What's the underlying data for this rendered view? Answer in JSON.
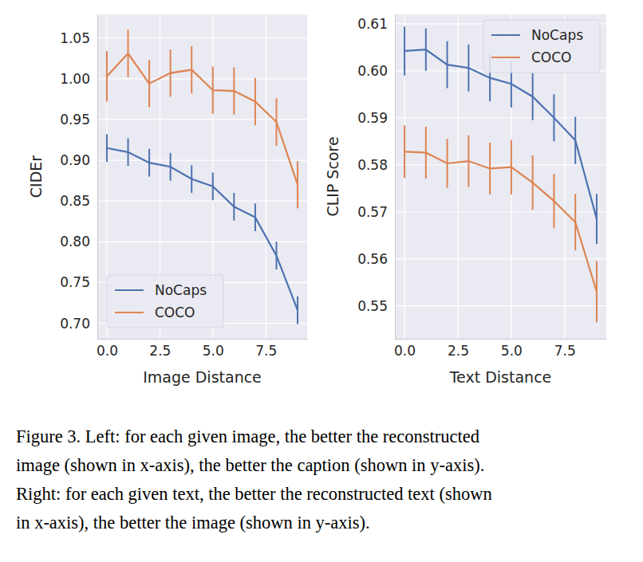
{
  "chart_data": [
    {
      "type": "line",
      "xlabel": "Image Distance",
      "ylabel": "CIDEr",
      "x": [
        0,
        1,
        2,
        3,
        4,
        5,
        6,
        7,
        8,
        9
      ],
      "xlim": [
        -0.45,
        9.45
      ],
      "xticks": [
        {
          "value": 0,
          "label": "0.0"
        },
        2.5,
        {
          "value": 5,
          "label": "5.0"
        },
        7.5
      ],
      "ylim": [
        0.681,
        1.079
      ],
      "yticks": [
        {
          "value": 0.7,
          "label": "0.70"
        },
        0.75,
        {
          "value": 0.8,
          "label": "0.80"
        },
        0.85,
        {
          "value": 0.9,
          "label": "0.90"
        },
        0.95,
        {
          "value": 1.0,
          "label": "1.00"
        },
        1.05
      ],
      "grid": true,
      "legend": "lower left",
      "series": [
        {
          "name": "NoCaps",
          "color": "#4c72b0",
          "values": [
            0.915,
            0.91,
            0.897,
            0.892,
            0.877,
            0.868,
            0.843,
            0.83,
            0.783,
            0.716
          ],
          "errors": [
            0.017,
            0.017,
            0.017,
            0.017,
            0.017,
            0.017,
            0.017,
            0.017,
            0.017,
            0.017
          ]
        },
        {
          "name": "COCO",
          "color": "#dd8452",
          "values": [
            1.003,
            1.031,
            0.994,
            1.007,
            1.011,
            0.986,
            0.985,
            0.972,
            0.947,
            0.87
          ],
          "errors": [
            0.031,
            0.029,
            0.029,
            0.029,
            0.029,
            0.029,
            0.029,
            0.029,
            0.029,
            0.029
          ]
        }
      ]
    },
    {
      "type": "line",
      "xlabel": "Text Distance",
      "ylabel": "CLIP Score",
      "x": [
        0,
        1,
        2,
        3,
        4,
        5,
        6,
        7,
        8,
        9
      ],
      "xlim": [
        -0.45,
        9.45
      ],
      "xticks": [
        {
          "value": 0,
          "label": "0.0"
        },
        2.5,
        {
          "value": 5,
          "label": "5.0"
        },
        7.5
      ],
      "ylim": [
        0.543,
        0.612
      ],
      "yticks": [
        0.55,
        0.56,
        0.57,
        0.58,
        0.59,
        {
          "value": 0.6,
          "label": "0.60"
        },
        0.61
      ],
      "grid": true,
      "legend": "upper right",
      "series": [
        {
          "name": "NoCaps",
          "color": "#4c72b0",
          "values": [
            0.6042,
            0.6045,
            0.6013,
            0.6006,
            0.5985,
            0.5972,
            0.5945,
            0.59,
            0.5852,
            0.5685
          ],
          "errors": [
            0.0052,
            0.0045,
            0.005,
            0.005,
            0.005,
            0.005,
            0.005,
            0.005,
            0.005,
            0.0053
          ]
        },
        {
          "name": "COCO",
          "color": "#dd8452",
          "values": [
            0.5828,
            0.5826,
            0.5803,
            0.5808,
            0.5792,
            0.5795,
            0.5762,
            0.5723,
            0.5678,
            0.553
          ],
          "errors": [
            0.0056,
            0.0055,
            0.0052,
            0.0055,
            0.0055,
            0.0058,
            0.0058,
            0.0058,
            0.006,
            0.0065
          ]
        }
      ]
    }
  ],
  "caption": [
    "Figure 3. Left: for each given image, the better the reconstructed",
    "image (shown in x-axis), the better the caption (shown in y-axis).",
    "Right: for each given text, the better the reconstructed text (shown",
    "in x-axis), the better the image (shown in y-axis)."
  ]
}
